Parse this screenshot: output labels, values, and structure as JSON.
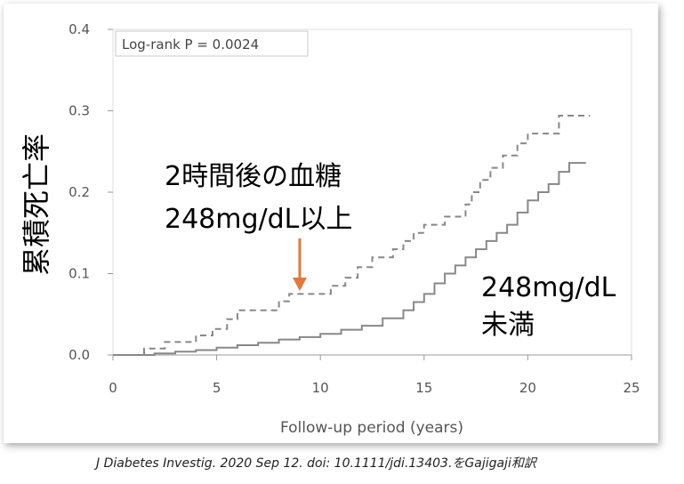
{
  "chart_data": {
    "type": "line",
    "ylabel": "累積死亡率",
    "xlabel": "Follow-up period (years)",
    "xlim": [
      0,
      25
    ],
    "ylim": [
      0,
      0.4
    ],
    "xticks": [
      "0",
      "5",
      "10",
      "15",
      "20",
      "25"
    ],
    "yticks": [
      "0.0",
      "0.1",
      "0.2",
      "0.3",
      "0.4"
    ],
    "grid": false,
    "stat_annotation": "Log-rank P = 0.0024",
    "series": [
      {
        "name_lines": [
          "2時間後の血糖",
          "248mg/dL以上"
        ],
        "style": "dashed",
        "color": "#888888",
        "points": [
          [
            0,
            0
          ],
          [
            1.5,
            0
          ],
          [
            1.5,
            0.008
          ],
          [
            2.5,
            0.008
          ],
          [
            2.5,
            0.016
          ],
          [
            4,
            0.016
          ],
          [
            4,
            0.024
          ],
          [
            4.8,
            0.024
          ],
          [
            4.8,
            0.032
          ],
          [
            5.5,
            0.032
          ],
          [
            5.5,
            0.044
          ],
          [
            6,
            0.044
          ],
          [
            6,
            0.055
          ],
          [
            8,
            0.055
          ],
          [
            8,
            0.066
          ],
          [
            8.5,
            0.066
          ],
          [
            8.5,
            0.075
          ],
          [
            10.5,
            0.075
          ],
          [
            10.5,
            0.085
          ],
          [
            11.2,
            0.085
          ],
          [
            11.2,
            0.095
          ],
          [
            11.8,
            0.095
          ],
          [
            11.8,
            0.108
          ],
          [
            12.5,
            0.108
          ],
          [
            12.5,
            0.12
          ],
          [
            13.5,
            0.12
          ],
          [
            13.5,
            0.13
          ],
          [
            14,
            0.13
          ],
          [
            14,
            0.14
          ],
          [
            14.5,
            0.14
          ],
          [
            14.5,
            0.15
          ],
          [
            15,
            0.15
          ],
          [
            15,
            0.16
          ],
          [
            16,
            0.16
          ],
          [
            16,
            0.17
          ],
          [
            17,
            0.17
          ],
          [
            17,
            0.185
          ],
          [
            17.3,
            0.185
          ],
          [
            17.3,
            0.2
          ],
          [
            17.7,
            0.2
          ],
          [
            17.7,
            0.215
          ],
          [
            18.2,
            0.215
          ],
          [
            18.2,
            0.23
          ],
          [
            18.8,
            0.23
          ],
          [
            18.8,
            0.245
          ],
          [
            19.5,
            0.245
          ],
          [
            19.5,
            0.26
          ],
          [
            20,
            0.26
          ],
          [
            20,
            0.272
          ],
          [
            21.5,
            0.272
          ],
          [
            21.5,
            0.294
          ],
          [
            23,
            0.294
          ]
        ]
      },
      {
        "name_lines": [
          "248mg/dL",
          "未満"
        ],
        "style": "solid",
        "color": "#888888",
        "points": [
          [
            0,
            0
          ],
          [
            2,
            0
          ],
          [
            2,
            0.002
          ],
          [
            3,
            0.002
          ],
          [
            3,
            0.004
          ],
          [
            4,
            0.004
          ],
          [
            4,
            0.006
          ],
          [
            5,
            0.006
          ],
          [
            5,
            0.009
          ],
          [
            6,
            0.009
          ],
          [
            6,
            0.012
          ],
          [
            7,
            0.012
          ],
          [
            7,
            0.015
          ],
          [
            8,
            0.015
          ],
          [
            8,
            0.019
          ],
          [
            9,
            0.019
          ],
          [
            9,
            0.022
          ],
          [
            10,
            0.022
          ],
          [
            10,
            0.026
          ],
          [
            11,
            0.026
          ],
          [
            11,
            0.031
          ],
          [
            12,
            0.031
          ],
          [
            12,
            0.036
          ],
          [
            13,
            0.036
          ],
          [
            13,
            0.045
          ],
          [
            14,
            0.045
          ],
          [
            14,
            0.055
          ],
          [
            14.5,
            0.055
          ],
          [
            14.5,
            0.065
          ],
          [
            15,
            0.065
          ],
          [
            15,
            0.075
          ],
          [
            15.5,
            0.075
          ],
          [
            15.5,
            0.088
          ],
          [
            16,
            0.088
          ],
          [
            16,
            0.1
          ],
          [
            16.5,
            0.1
          ],
          [
            16.5,
            0.11
          ],
          [
            17,
            0.11
          ],
          [
            17,
            0.12
          ],
          [
            17.5,
            0.12
          ],
          [
            17.5,
            0.13
          ],
          [
            18,
            0.13
          ],
          [
            18,
            0.14
          ],
          [
            18.5,
            0.14
          ],
          [
            18.5,
            0.15
          ],
          [
            19,
            0.15
          ],
          [
            19,
            0.16
          ],
          [
            19.5,
            0.16
          ],
          [
            19.5,
            0.175
          ],
          [
            20,
            0.175
          ],
          [
            20,
            0.19
          ],
          [
            20.5,
            0.19
          ],
          [
            20.5,
            0.2
          ],
          [
            21,
            0.2
          ],
          [
            21,
            0.21
          ],
          [
            21.5,
            0.21
          ],
          [
            21.5,
            0.225
          ],
          [
            22,
            0.225
          ],
          [
            22,
            0.236
          ],
          [
            22.8,
            0.236
          ]
        ]
      }
    ]
  },
  "citation": "J Diabetes Investig. 2020 Sep 12. doi: 10.1111/jdi.13403.をGajigaji和訳",
  "colors": {
    "arrow": "#e2783a",
    "axis": "#999999",
    "line": "#888888"
  }
}
